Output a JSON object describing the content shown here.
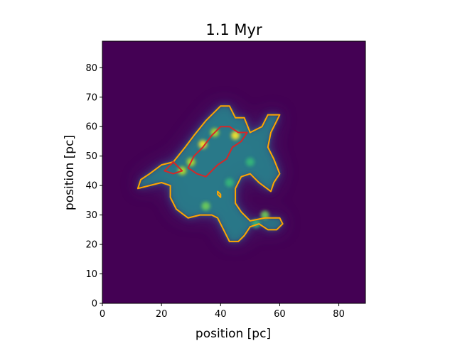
{
  "chart_data": {
    "type": "heatmap",
    "title": "1.1 Myr",
    "xlabel": "position [pc]",
    "ylabel": "position [pc]",
    "xlim": [
      0,
      89
    ],
    "ylim": [
      0,
      89
    ],
    "xticks": [
      0,
      20,
      40,
      60,
      80
    ],
    "yticks": [
      0,
      10,
      20,
      30,
      40,
      50,
      60,
      70,
      80
    ],
    "xtick_labels": [
      "0",
      "20",
      "40",
      "60",
      "80"
    ],
    "ytick_labels": [
      "0",
      "10",
      "20",
      "30",
      "40",
      "50",
      "60",
      "70",
      "80"
    ],
    "colormap": "viridis",
    "background_color": "#440154",
    "contours": [
      {
        "color": "#ffa500",
        "points": [
          [
            12,
            39
          ],
          [
            13,
            42
          ],
          [
            16,
            44
          ],
          [
            20,
            47
          ],
          [
            24,
            48
          ],
          [
            28,
            53
          ],
          [
            31,
            57
          ],
          [
            35,
            62
          ],
          [
            40,
            67
          ],
          [
            43,
            67
          ],
          [
            45,
            63
          ],
          [
            48,
            63
          ],
          [
            50,
            58
          ],
          [
            54,
            60
          ],
          [
            56,
            64
          ],
          [
            60,
            64
          ],
          [
            57,
            58
          ],
          [
            56,
            53
          ],
          [
            58,
            49
          ],
          [
            60,
            44
          ],
          [
            58,
            41
          ],
          [
            57,
            38
          ],
          [
            53,
            41
          ],
          [
            50,
            44
          ],
          [
            47,
            43
          ],
          [
            45,
            39
          ],
          [
            45,
            34
          ],
          [
            47,
            31
          ],
          [
            50,
            28
          ],
          [
            55,
            29
          ],
          [
            60,
            29
          ],
          [
            61,
            27
          ],
          [
            59,
            25
          ],
          [
            56,
            25
          ],
          [
            53,
            27
          ],
          [
            50,
            26
          ],
          [
            48,
            23
          ],
          [
            46,
            21
          ],
          [
            43,
            21
          ],
          [
            41,
            25
          ],
          [
            39,
            29
          ],
          [
            37,
            30
          ],
          [
            33,
            30
          ],
          [
            29,
            29
          ],
          [
            25,
            32
          ],
          [
            23,
            36
          ],
          [
            23,
            40
          ],
          [
            20,
            41
          ],
          [
            16,
            40
          ]
        ]
      },
      {
        "color": "#ffa500",
        "points": [
          [
            39,
            38
          ],
          [
            40,
            37
          ],
          [
            40,
            36
          ],
          [
            39,
            37
          ]
        ]
      },
      {
        "color": "#d62728",
        "points": [
          [
            29,
            46
          ],
          [
            31,
            50
          ],
          [
            34,
            53
          ],
          [
            37,
            57
          ],
          [
            40,
            60
          ],
          [
            43,
            60
          ],
          [
            46,
            58
          ],
          [
            49,
            58
          ],
          [
            47,
            55
          ],
          [
            44,
            53
          ],
          [
            42,
            49
          ],
          [
            39,
            47
          ],
          [
            37,
            45
          ],
          [
            35,
            43
          ],
          [
            32,
            44
          ]
        ]
      },
      {
        "color": "#d62728",
        "points": [
          [
            22,
            46
          ],
          [
            24,
            48
          ],
          [
            27,
            45
          ],
          [
            24,
            44
          ],
          [
            21,
            45
          ]
        ]
      }
    ],
    "bright_spots": [
      {
        "x": 34,
        "y": 54,
        "value": 1.0
      },
      {
        "x": 45,
        "y": 57,
        "value": 1.0
      },
      {
        "x": 30,
        "y": 48,
        "value": 0.9
      },
      {
        "x": 38,
        "y": 58,
        "value": 0.9
      },
      {
        "x": 27,
        "y": 45,
        "value": 0.85
      },
      {
        "x": 35,
        "y": 33,
        "value": 0.8
      },
      {
        "x": 43,
        "y": 41,
        "value": 0.7
      },
      {
        "x": 55,
        "y": 30,
        "value": 0.75
      },
      {
        "x": 50,
        "y": 48,
        "value": 0.7
      },
      {
        "x": 52,
        "y": 27,
        "value": 0.6
      }
    ]
  }
}
